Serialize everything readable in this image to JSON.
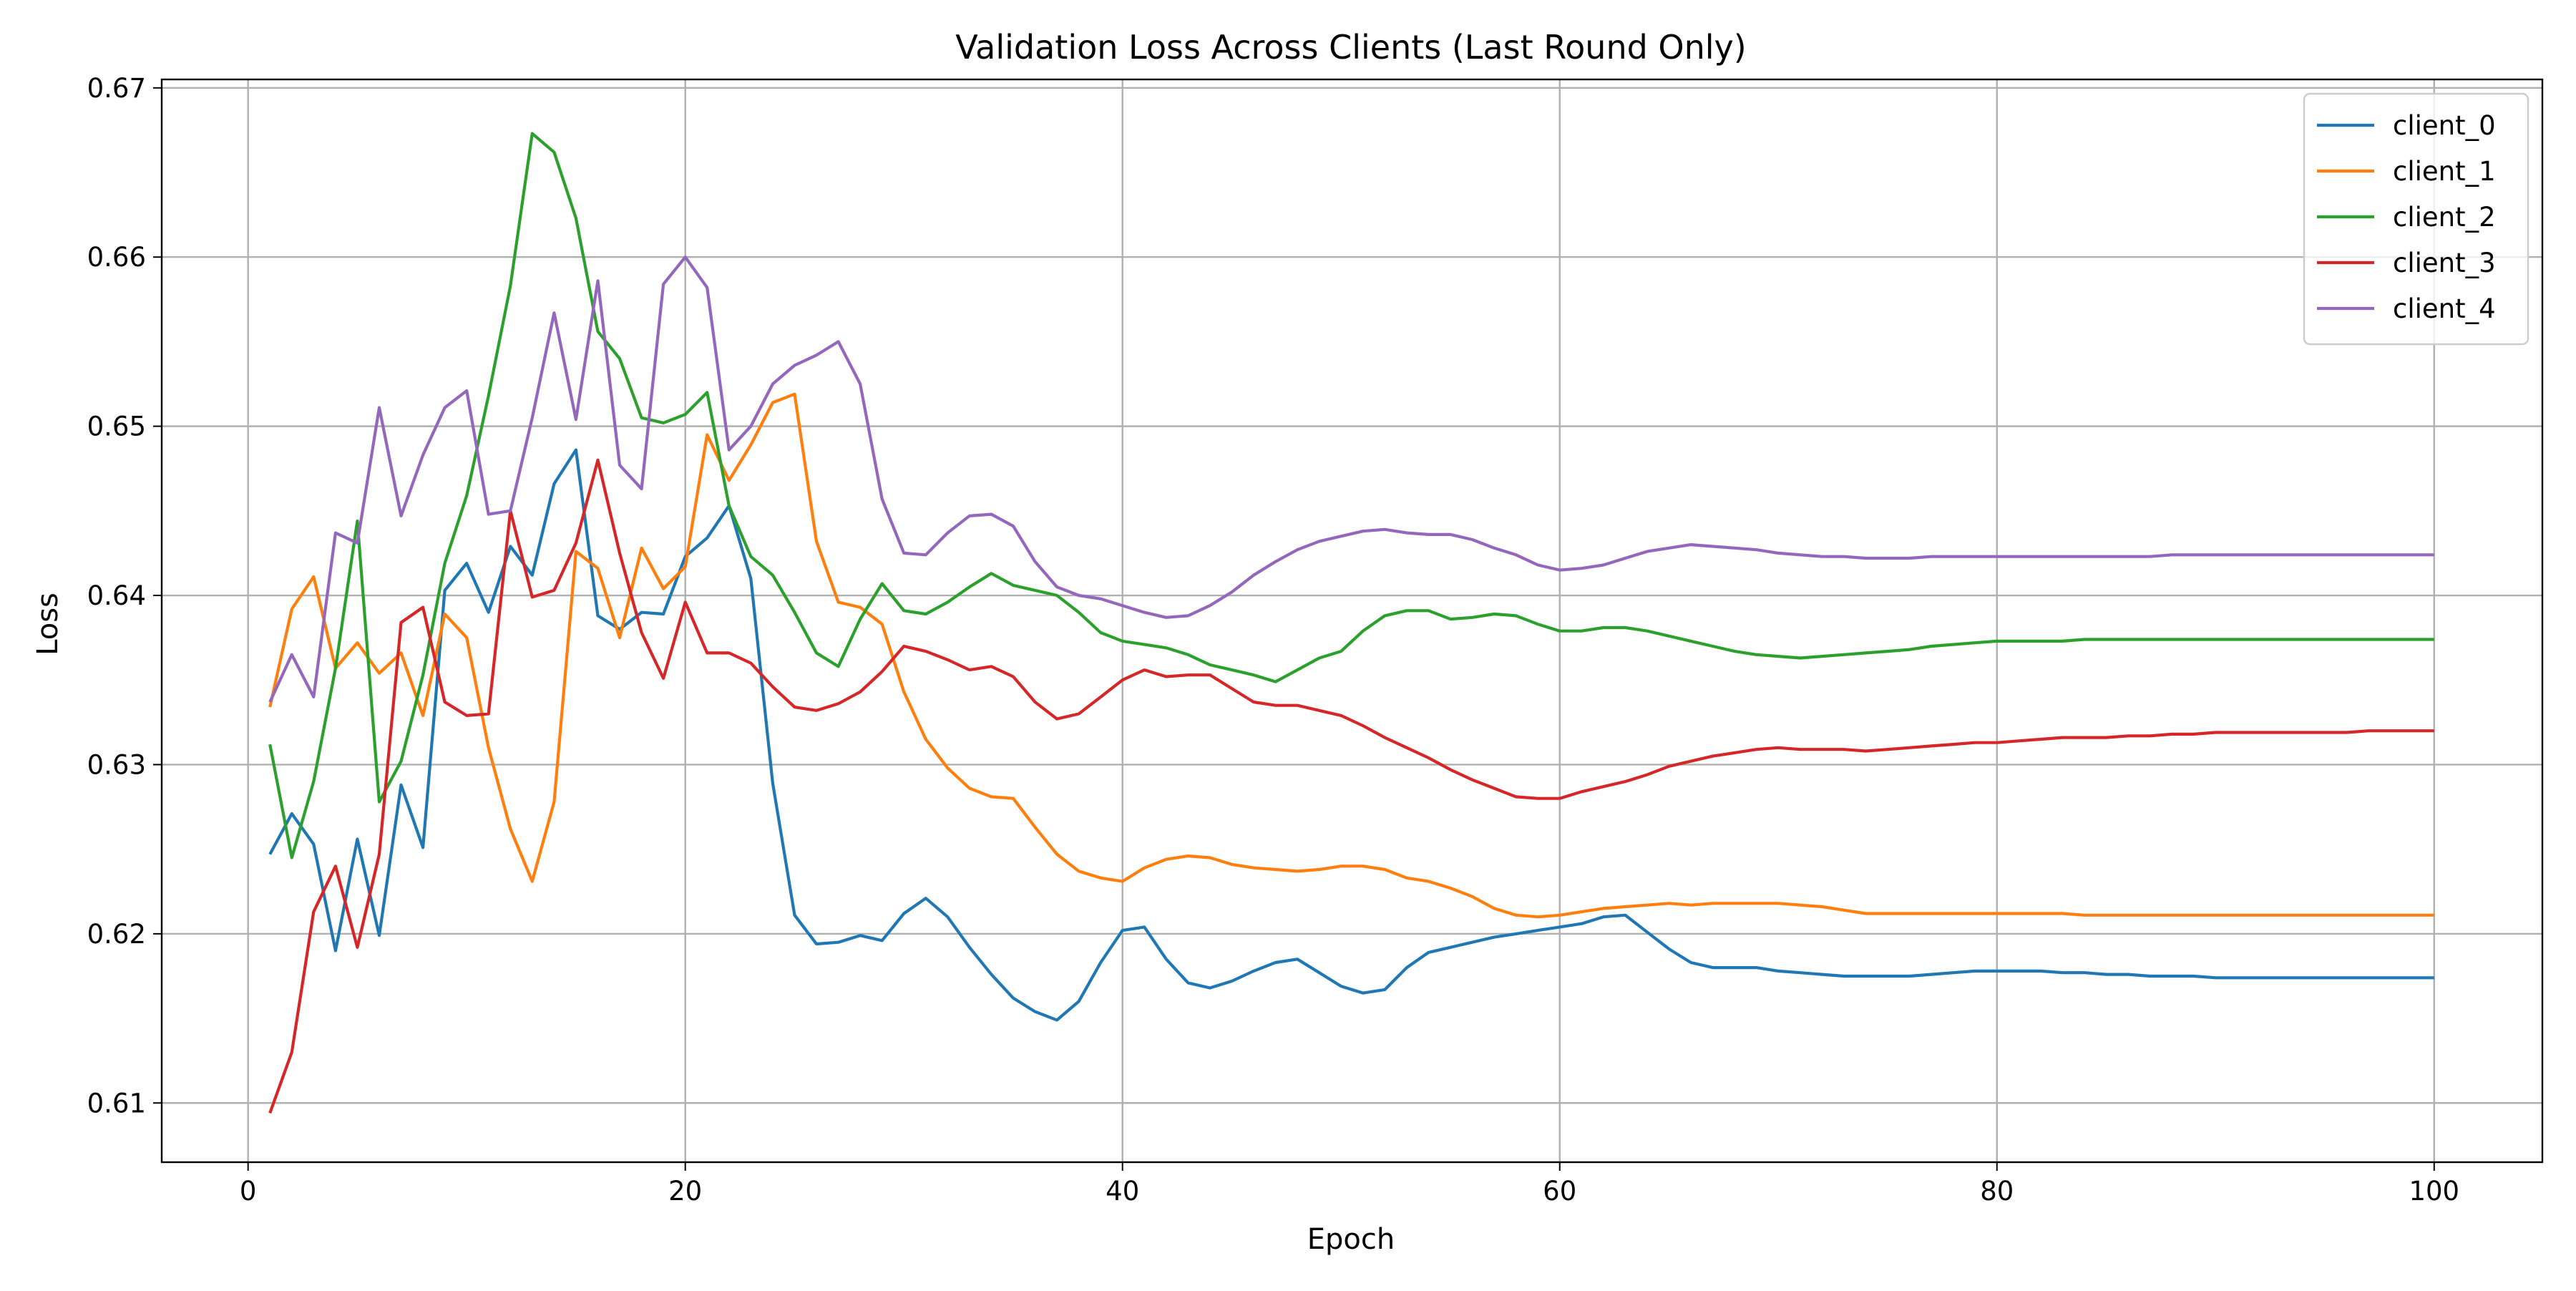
{
  "chart_data": {
    "type": "line",
    "title": "Validation Loss Across Clients (Last Round Only)",
    "xlabel": "Epoch",
    "ylabel": "Loss",
    "xlim": [
      -3.95,
      104.95
    ],
    "ylim": [
      0.6065,
      0.6705
    ],
    "xticks": [
      0,
      20,
      40,
      60,
      80,
      100
    ],
    "yticks": [
      0.61,
      0.62,
      0.63,
      0.64,
      0.65,
      0.66,
      0.67
    ],
    "xtick_labels": [
      "0",
      "20",
      "40",
      "60",
      "80",
      "100"
    ],
    "ytick_labels": [
      "0.61",
      "0.62",
      "0.63",
      "0.64",
      "0.65",
      "0.66",
      "0.67"
    ],
    "grid": true,
    "legend_position": "top-right",
    "series": [
      {
        "name": "client_0",
        "color": "#1f77b4",
        "x": [
          1,
          2,
          3,
          4,
          5,
          6,
          7,
          8,
          9,
          10,
          11,
          12,
          13,
          14,
          15,
          16,
          17,
          18,
          19,
          20,
          21,
          22,
          23,
          24,
          25,
          26,
          27,
          28,
          29,
          30,
          31,
          32,
          33,
          34,
          35,
          36,
          37,
          38,
          39,
          40,
          41,
          42,
          43,
          44,
          45,
          46,
          47,
          48,
          49,
          50,
          51,
          52,
          53,
          54,
          55,
          56,
          57,
          58,
          59,
          60,
          61,
          62,
          63,
          64,
          65,
          66,
          67,
          68,
          69,
          70,
          71,
          72,
          73,
          74,
          75,
          76,
          77,
          78,
          79,
          80,
          81,
          82,
          83,
          84,
          85,
          86,
          87,
          88,
          89,
          90,
          91,
          92,
          93,
          94,
          95,
          96,
          97,
          98,
          99,
          100
        ],
        "y": [
          0.6247,
          0.6271,
          0.6253,
          0.619,
          0.6256,
          0.6199,
          0.6288,
          0.6251,
          0.6403,
          0.6419,
          0.639,
          0.6429,
          0.6412,
          0.6466,
          0.6486,
          0.6388,
          0.638,
          0.639,
          0.6389,
          0.6423,
          0.6434,
          0.6453,
          0.641,
          0.6289,
          0.6211,
          0.6194,
          0.6195,
          0.6199,
          0.6196,
          0.6212,
          0.6221,
          0.621,
          0.6192,
          0.6176,
          0.6162,
          0.6154,
          0.6149,
          0.616,
          0.6183,
          0.6202,
          0.6204,
          0.6185,
          0.6171,
          0.6168,
          0.6172,
          0.6178,
          0.6183,
          0.6185,
          0.6177,
          0.6169,
          0.6165,
          0.6167,
          0.618,
          0.6189,
          0.6192,
          0.6195,
          0.6198,
          0.62,
          0.6202,
          0.6204,
          0.6206,
          0.621,
          0.6211,
          0.6201,
          0.6191,
          0.6183,
          0.618,
          0.618,
          0.618,
          0.6178,
          0.6177,
          0.6176,
          0.6175,
          0.6175,
          0.6175,
          0.6175,
          0.6176,
          0.6177,
          0.6178,
          0.6178,
          0.6178,
          0.6178,
          0.6177,
          0.6177,
          0.6176,
          0.6176,
          0.6175,
          0.6175,
          0.6175,
          0.6174,
          0.6174,
          0.6174,
          0.6174,
          0.6174,
          0.6174,
          0.6174,
          0.6174,
          0.6174,
          0.6174,
          0.6174
        ]
      },
      {
        "name": "client_1",
        "color": "#ff7f0e",
        "x": [
          1,
          2,
          3,
          4,
          5,
          6,
          7,
          8,
          9,
          10,
          11,
          12,
          13,
          14,
          15,
          16,
          17,
          18,
          19,
          20,
          21,
          22,
          23,
          24,
          25,
          26,
          27,
          28,
          29,
          30,
          31,
          32,
          33,
          34,
          35,
          36,
          37,
          38,
          39,
          40,
          41,
          42,
          43,
          44,
          45,
          46,
          47,
          48,
          49,
          50,
          51,
          52,
          53,
          54,
          55,
          56,
          57,
          58,
          59,
          60,
          61,
          62,
          63,
          64,
          65,
          66,
          67,
          68,
          69,
          70,
          71,
          72,
          73,
          74,
          75,
          76,
          77,
          78,
          79,
          80,
          81,
          82,
          83,
          84,
          85,
          86,
          87,
          88,
          89,
          90,
          91,
          92,
          93,
          94,
          95,
          96,
          97,
          98,
          99,
          100
        ],
        "y": [
          0.6334,
          0.6392,
          0.6411,
          0.6357,
          0.6372,
          0.6354,
          0.6366,
          0.6329,
          0.6389,
          0.6375,
          0.631,
          0.6262,
          0.6231,
          0.6278,
          0.6426,
          0.6416,
          0.6375,
          0.6428,
          0.6404,
          0.6417,
          0.6495,
          0.6468,
          0.6489,
          0.6514,
          0.6519,
          0.6432,
          0.6396,
          0.6393,
          0.6383,
          0.6343,
          0.6315,
          0.6298,
          0.6286,
          0.6281,
          0.628,
          0.6263,
          0.6247,
          0.6237,
          0.6233,
          0.6231,
          0.6239,
          0.6244,
          0.6246,
          0.6245,
          0.6241,
          0.6239,
          0.6238,
          0.6237,
          0.6238,
          0.624,
          0.624,
          0.6238,
          0.6233,
          0.6231,
          0.6227,
          0.6222,
          0.6215,
          0.6211,
          0.621,
          0.6211,
          0.6213,
          0.6215,
          0.6216,
          0.6217,
          0.6218,
          0.6217,
          0.6218,
          0.6218,
          0.6218,
          0.6218,
          0.6217,
          0.6216,
          0.6214,
          0.6212,
          0.6212,
          0.6212,
          0.6212,
          0.6212,
          0.6212,
          0.6212,
          0.6212,
          0.6212,
          0.6212,
          0.6211,
          0.6211,
          0.6211,
          0.6211,
          0.6211,
          0.6211,
          0.6211,
          0.6211,
          0.6211,
          0.6211,
          0.6211,
          0.6211,
          0.6211,
          0.6211,
          0.6211,
          0.6211,
          0.6211
        ]
      },
      {
        "name": "client_2",
        "color": "#2ca02c",
        "x": [
          1,
          2,
          3,
          4,
          5,
          6,
          7,
          8,
          9,
          10,
          11,
          12,
          13,
          14,
          15,
          16,
          17,
          18,
          19,
          20,
          21,
          22,
          23,
          24,
          25,
          26,
          27,
          28,
          29,
          30,
          31,
          32,
          33,
          34,
          35,
          36,
          37,
          38,
          39,
          40,
          41,
          42,
          43,
          44,
          45,
          46,
          47,
          48,
          49,
          50,
          51,
          52,
          53,
          54,
          55,
          56,
          57,
          58,
          59,
          60,
          61,
          62,
          63,
          64,
          65,
          66,
          67,
          68,
          69,
          70,
          71,
          72,
          73,
          74,
          75,
          76,
          77,
          78,
          79,
          80,
          81,
          82,
          83,
          84,
          85,
          86,
          87,
          88,
          89,
          90,
          91,
          92,
          93,
          94,
          95,
          96,
          97,
          98,
          99,
          100
        ],
        "y": [
          0.6312,
          0.6245,
          0.629,
          0.6357,
          0.6444,
          0.6278,
          0.6302,
          0.6353,
          0.6419,
          0.6459,
          0.6518,
          0.6583,
          0.6673,
          0.6662,
          0.6623,
          0.6556,
          0.654,
          0.6505,
          0.6502,
          0.6507,
          0.652,
          0.6453,
          0.6423,
          0.6412,
          0.639,
          0.6366,
          0.6358,
          0.6386,
          0.6407,
          0.6391,
          0.6389,
          0.6396,
          0.6405,
          0.6413,
          0.6406,
          0.6403,
          0.64,
          0.639,
          0.6378,
          0.6373,
          0.6371,
          0.6369,
          0.6365,
          0.6359,
          0.6356,
          0.6353,
          0.6349,
          0.6356,
          0.6363,
          0.6367,
          0.6379,
          0.6388,
          0.6391,
          0.6391,
          0.6386,
          0.6387,
          0.6389,
          0.6388,
          0.6383,
          0.6379,
          0.6379,
          0.6381,
          0.6381,
          0.6379,
          0.6376,
          0.6373,
          0.637,
          0.6367,
          0.6365,
          0.6364,
          0.6363,
          0.6364,
          0.6365,
          0.6366,
          0.6367,
          0.6368,
          0.637,
          0.6371,
          0.6372,
          0.6373,
          0.6373,
          0.6373,
          0.6373,
          0.6374,
          0.6374,
          0.6374,
          0.6374,
          0.6374,
          0.6374,
          0.6374,
          0.6374,
          0.6374,
          0.6374,
          0.6374,
          0.6374,
          0.6374,
          0.6374,
          0.6374,
          0.6374,
          0.6374
        ]
      },
      {
        "name": "client_3",
        "color": "#d62728",
        "x": [
          1,
          2,
          3,
          4,
          5,
          6,
          7,
          8,
          9,
          10,
          11,
          12,
          13,
          14,
          15,
          16,
          17,
          18,
          19,
          20,
          21,
          22,
          23,
          24,
          25,
          26,
          27,
          28,
          29,
          30,
          31,
          32,
          33,
          34,
          35,
          36,
          37,
          38,
          39,
          40,
          41,
          42,
          43,
          44,
          45,
          46,
          47,
          48,
          49,
          50,
          51,
          52,
          53,
          54,
          55,
          56,
          57,
          58,
          59,
          60,
          61,
          62,
          63,
          64,
          65,
          66,
          67,
          68,
          69,
          70,
          71,
          72,
          73,
          74,
          75,
          76,
          77,
          78,
          79,
          80,
          81,
          82,
          83,
          84,
          85,
          86,
          87,
          88,
          89,
          90,
          91,
          92,
          93,
          94,
          95,
          96,
          97,
          98,
          99,
          100
        ],
        "y": [
          0.6094,
          0.613,
          0.6213,
          0.624,
          0.6192,
          0.6247,
          0.6384,
          0.6393,
          0.6337,
          0.6329,
          0.633,
          0.645,
          0.6399,
          0.6403,
          0.6431,
          0.648,
          0.6425,
          0.6378,
          0.6351,
          0.6396,
          0.6366,
          0.6366,
          0.636,
          0.6346,
          0.6334,
          0.6332,
          0.6336,
          0.6343,
          0.6355,
          0.637,
          0.6367,
          0.6362,
          0.6356,
          0.6358,
          0.6352,
          0.6337,
          0.6327,
          0.633,
          0.634,
          0.635,
          0.6356,
          0.6352,
          0.6353,
          0.6353,
          0.6345,
          0.6337,
          0.6335,
          0.6335,
          0.6332,
          0.6329,
          0.6323,
          0.6316,
          0.631,
          0.6304,
          0.6297,
          0.6291,
          0.6286,
          0.6281,
          0.628,
          0.628,
          0.6284,
          0.6287,
          0.629,
          0.6294,
          0.6299,
          0.6302,
          0.6305,
          0.6307,
          0.6309,
          0.631,
          0.6309,
          0.6309,
          0.6309,
          0.6308,
          0.6309,
          0.631,
          0.6311,
          0.6312,
          0.6313,
          0.6313,
          0.6314,
          0.6315,
          0.6316,
          0.6316,
          0.6316,
          0.6317,
          0.6317,
          0.6318,
          0.6318,
          0.6319,
          0.6319,
          0.6319,
          0.6319,
          0.6319,
          0.6319,
          0.6319,
          0.632,
          0.632,
          0.632,
          0.632
        ]
      },
      {
        "name": "client_4",
        "color": "#9467bd",
        "x": [
          1,
          2,
          3,
          4,
          5,
          6,
          7,
          8,
          9,
          10,
          11,
          12,
          13,
          14,
          15,
          16,
          17,
          18,
          19,
          20,
          21,
          22,
          23,
          24,
          25,
          26,
          27,
          28,
          29,
          30,
          31,
          32,
          33,
          34,
          35,
          36,
          37,
          38,
          39,
          40,
          41,
          42,
          43,
          44,
          45,
          46,
          47,
          48,
          49,
          50,
          51,
          52,
          53,
          54,
          55,
          56,
          57,
          58,
          59,
          60,
          61,
          62,
          63,
          64,
          65,
          66,
          67,
          68,
          69,
          70,
          71,
          72,
          73,
          74,
          75,
          76,
          77,
          78,
          79,
          80,
          81,
          82,
          83,
          84,
          85,
          86,
          87,
          88,
          89,
          90,
          91,
          92,
          93,
          94,
          95,
          96,
          97,
          98,
          99,
          100
        ],
        "y": [
          0.6337,
          0.6365,
          0.634,
          0.6437,
          0.6431,
          0.6511,
          0.6447,
          0.6483,
          0.6511,
          0.6521,
          0.6448,
          0.645,
          0.6505,
          0.6567,
          0.6504,
          0.6586,
          0.6477,
          0.6463,
          0.6584,
          0.66,
          0.6582,
          0.6486,
          0.65,
          0.6525,
          0.6536,
          0.6542,
          0.655,
          0.6525,
          0.6457,
          0.6425,
          0.6424,
          0.6437,
          0.6447,
          0.6448,
          0.6441,
          0.642,
          0.6405,
          0.64,
          0.6398,
          0.6394,
          0.639,
          0.6387,
          0.6388,
          0.6394,
          0.6402,
          0.6412,
          0.642,
          0.6427,
          0.6432,
          0.6435,
          0.6438,
          0.6439,
          0.6437,
          0.6436,
          0.6436,
          0.6433,
          0.6428,
          0.6424,
          0.6418,
          0.6415,
          0.6416,
          0.6418,
          0.6422,
          0.6426,
          0.6428,
          0.643,
          0.6429,
          0.6428,
          0.6427,
          0.6425,
          0.6424,
          0.6423,
          0.6423,
          0.6422,
          0.6422,
          0.6422,
          0.6423,
          0.6423,
          0.6423,
          0.6423,
          0.6423,
          0.6423,
          0.6423,
          0.6423,
          0.6423,
          0.6423,
          0.6423,
          0.6424,
          0.6424,
          0.6424,
          0.6424,
          0.6424,
          0.6424,
          0.6424,
          0.6424,
          0.6424,
          0.6424,
          0.6424,
          0.6424,
          0.6424
        ]
      }
    ]
  }
}
